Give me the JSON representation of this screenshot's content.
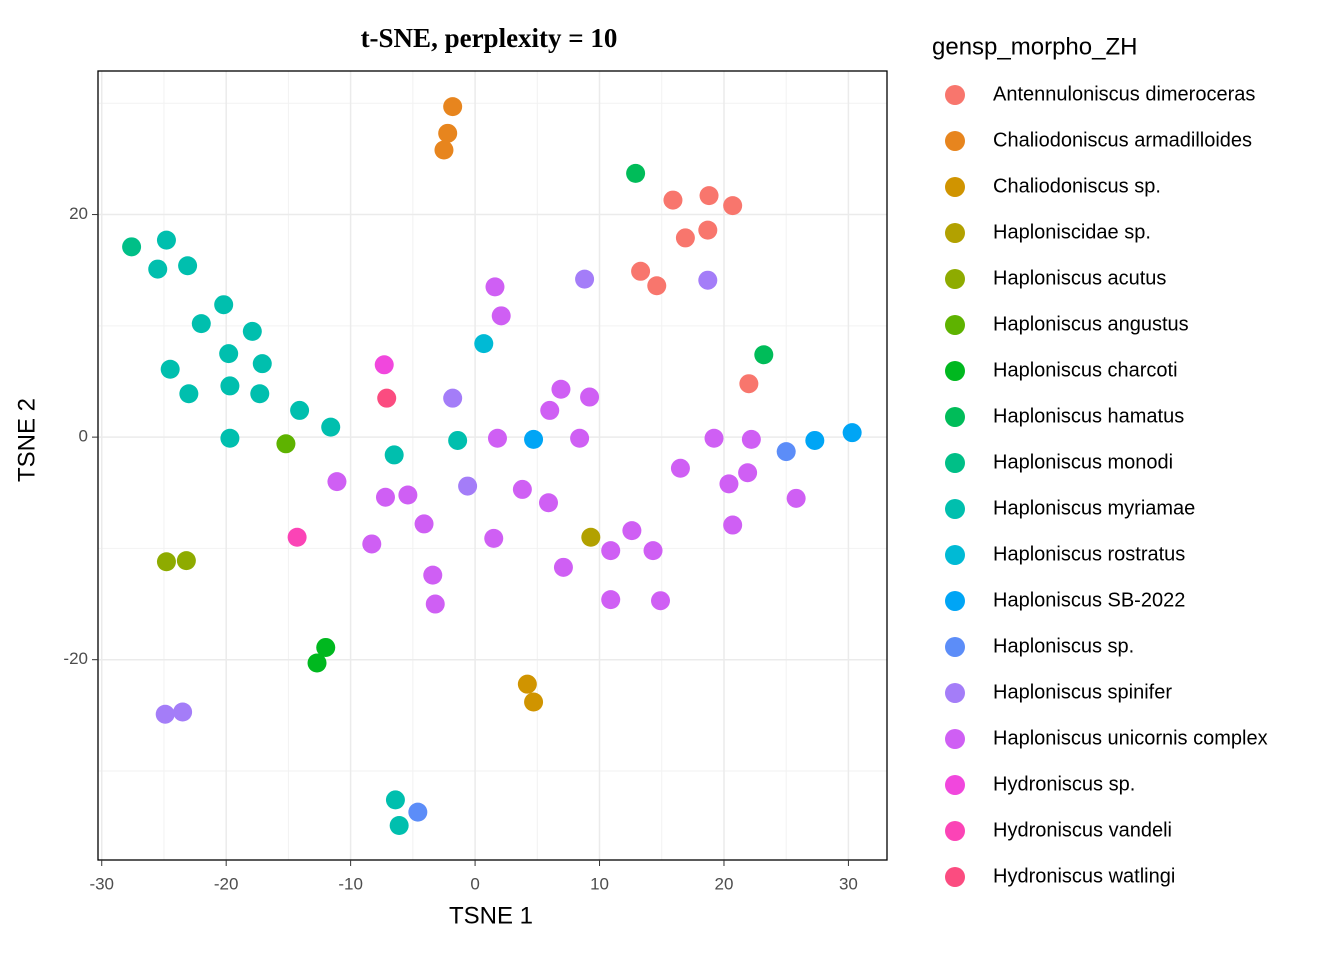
{
  "chart_data": {
    "type": "scatter",
    "title": "t-SNE, perplexity = 10",
    "x_label": "TSNE 1",
    "y_label": "TSNE 2",
    "legend_title": "gensp_morpho_ZH",
    "xlim": [
      -30.3,
      33.1
    ],
    "ylim": [
      -38.0,
      32.9
    ],
    "xticks": [
      -30,
      -20,
      -10,
      0,
      10,
      20,
      30
    ],
    "yticks": [
      -20,
      0,
      20
    ],
    "grid": true,
    "legend_position": "right",
    "series": [
      {
        "name": "Antennuloniscus dimeroceras",
        "color": "#F8766D",
        "x": [
          15.9,
          18.8,
          20.7,
          16.9,
          18.7,
          13.3,
          14.6,
          22.0
        ],
        "values": [
          21.3,
          21.7,
          20.8,
          17.9,
          18.6,
          14.9,
          13.6,
          4.8
        ]
      },
      {
        "name": "Chaliodoniscus armadilloides",
        "color": "#E7851E",
        "x": [
          -1.8,
          -2.2,
          -2.5
        ],
        "values": [
          29.7,
          27.3,
          25.8
        ]
      },
      {
        "name": "Chaliodoniscus sp.",
        "color": "#D09400",
        "x": [
          4.2,
          4.7
        ],
        "values": [
          -22.2,
          -23.8
        ]
      },
      {
        "name": "Haploniscidae sp.",
        "color": "#B2A100",
        "x": [
          9.3
        ],
        "values": [
          -9.0
        ]
      },
      {
        "name": "Haploniscus acutus",
        "color": "#8EAB00",
        "x": [
          -24.8,
          -23.2
        ],
        "values": [
          -11.2,
          -11.1
        ]
      },
      {
        "name": "Haploniscus angustus",
        "color": "#5EB300",
        "x": [
          -15.2
        ],
        "values": [
          -0.6
        ]
      },
      {
        "name": "Haploniscus charcoti",
        "color": "#00B81F",
        "x": [
          -12.0,
          -12.7
        ],
        "values": [
          -18.9,
          -20.3
        ]
      },
      {
        "name": "Haploniscus hamatus",
        "color": "#00BC59",
        "x": [
          12.9,
          23.2
        ],
        "values": [
          23.7,
          7.4
        ]
      },
      {
        "name": "Haploniscus monodi",
        "color": "#00BF87",
        "x": [
          -27.6
        ],
        "values": [
          17.1
        ]
      },
      {
        "name": "Haploniscus myriamae",
        "color": "#00BFAE",
        "x": [
          -24.8,
          -25.5,
          -23.1,
          -20.2,
          -22.0,
          -17.9,
          -19.8,
          -17.1,
          -24.5,
          -23.0,
          -19.7,
          -17.3,
          -14.1,
          -11.6,
          -19.7,
          -6.5,
          -1.4,
          -6.4,
          -6.1
        ],
        "values": [
          17.7,
          15.1,
          15.4,
          11.9,
          10.2,
          9.5,
          7.5,
          6.6,
          6.1,
          3.9,
          4.6,
          3.9,
          2.4,
          0.9,
          -0.1,
          -1.6,
          -0.3,
          -32.6,
          -34.9
        ]
      },
      {
        "name": "Haploniscus rostratus",
        "color": "#00BAD5",
        "x": [
          0.7
        ],
        "values": [
          8.4
        ]
      },
      {
        "name": "Haploniscus SB-2022",
        "color": "#00A5F5",
        "x": [
          4.7,
          27.3,
          30.3
        ],
        "values": [
          -0.2,
          -0.3,
          0.4
        ]
      },
      {
        "name": "Haploniscus sp.",
        "color": "#5C8DF8",
        "x": [
          25.0,
          -4.6
        ],
        "values": [
          -1.3,
          -33.7
        ]
      },
      {
        "name": "Haploniscus spinifer",
        "color": "#A47DF8",
        "x": [
          8.8,
          18.7,
          -1.8,
          -0.6,
          -24.9,
          -23.5
        ],
        "values": [
          14.2,
          14.1,
          3.5,
          -4.4,
          -24.9,
          -24.7
        ]
      },
      {
        "name": "Haploniscus unicornis complex",
        "color": "#CF5FF4",
        "x": [
          1.6,
          2.1,
          6.9,
          6.0,
          9.2,
          1.8,
          8.4,
          19.2,
          22.2,
          16.5,
          20.4,
          21.9,
          25.8,
          20.7,
          -11.1,
          -7.2,
          -5.4,
          -4.1,
          -8.3,
          1.5,
          3.8,
          5.9,
          12.6,
          10.9,
          14.3,
          7.1,
          -3.4,
          -3.2,
          10.9,
          14.9
        ],
        "values": [
          13.5,
          10.9,
          4.3,
          2.4,
          3.6,
          -0.1,
          -0.1,
          -0.1,
          -0.2,
          -2.8,
          -4.2,
          -3.2,
          -5.5,
          -7.9,
          -4.0,
          -5.4,
          -5.2,
          -7.8,
          -9.6,
          -9.1,
          -4.7,
          -5.9,
          -8.4,
          -10.2,
          -10.2,
          -11.7,
          -12.4,
          -15.0,
          -14.6,
          -14.7
        ]
      },
      {
        "name": "Hydroniscus sp.",
        "color": "#F147DD",
        "x": [
          -7.3
        ],
        "values": [
          6.5
        ]
      },
      {
        "name": "Hydroniscus vandeli",
        "color": "#FB44B6",
        "x": [
          -14.3
        ],
        "values": [
          -9.0
        ]
      },
      {
        "name": "Hydroniscus watlingi",
        "color": "#FB4C80",
        "x": [
          -7.1
        ],
        "values": [
          3.5
        ]
      }
    ]
  }
}
